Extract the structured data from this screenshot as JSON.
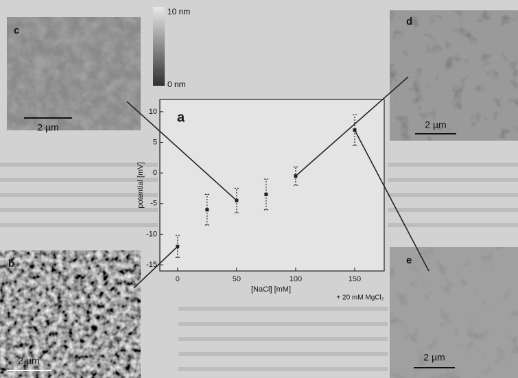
{
  "chart_data": {
    "type": "errorbar",
    "panel_label": "a",
    "x_label": "[NaCl] [mM]",
    "y_label": "potential [mV]",
    "annotation": "+ 20 mM MgCl₂",
    "x": [
      0,
      25,
      50,
      75,
      100,
      150
    ],
    "values": [
      -12,
      -6,
      -4.5,
      -3.5,
      -0.5,
      7
    ],
    "errors": [
      1.8,
      2.5,
      2,
      2.5,
      1.5,
      2.5
    ],
    "color": "#222222",
    "xlim": [
      -15,
      175
    ],
    "ylim": [
      -16,
      12
    ],
    "xticks": [
      0,
      50,
      100,
      150
    ],
    "yticks": [
      10,
      5,
      0,
      -5,
      -10,
      -15
    ]
  },
  "images": {
    "c": {
      "label": "c",
      "scale_bar": "2 µm"
    },
    "d": {
      "label": "d",
      "scale_bar": "2 µm"
    },
    "b": {
      "label": "b",
      "scale_bar": "2 µm"
    },
    "e": {
      "label": "e",
      "scale_bar": "2 µm"
    },
    "colorbar": {
      "max_label": "10 nm",
      "min_label": "0 nm"
    }
  }
}
